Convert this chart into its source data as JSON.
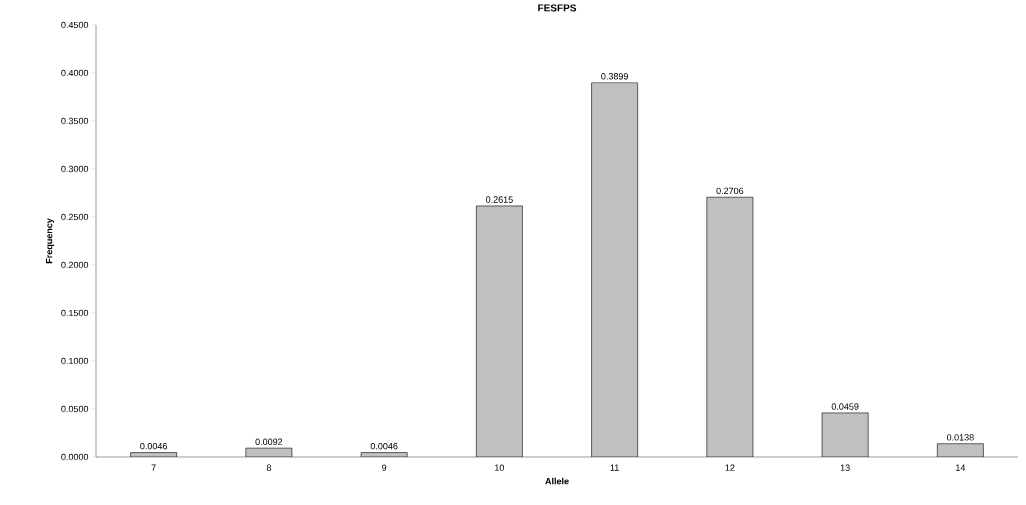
{
  "chart_data": {
    "type": "bar",
    "title": "FESFPS",
    "xlabel": "Allele",
    "ylabel": "Frequency",
    "categories": [
      "7",
      "8",
      "9",
      "10",
      "11",
      "12",
      "13",
      "14"
    ],
    "values": [
      0.0046,
      0.0092,
      0.0046,
      0.2615,
      0.3899,
      0.2706,
      0.0459,
      0.0138
    ],
    "color": "#c0c0c0",
    "data_labels": true,
    "grid": false,
    "ylim": [
      0,
      0.45
    ],
    "yticks": [
      {
        "value": 0,
        "label": "0.0000"
      },
      {
        "value": 0.05,
        "label": "0.0500"
      },
      {
        "value": 0.1,
        "label": "0.1000"
      },
      {
        "value": 0.15,
        "label": "0.1500"
      },
      {
        "value": 0.2,
        "label": "0.2000"
      },
      {
        "value": 0.25,
        "label": "0.2500"
      },
      {
        "value": 0.3,
        "label": "0.3000"
      },
      {
        "value": 0.35,
        "label": "0.3500"
      },
      {
        "value": 0.4,
        "label": "0.4000"
      },
      {
        "value": 0.45,
        "label": "0.4500"
      }
    ]
  }
}
